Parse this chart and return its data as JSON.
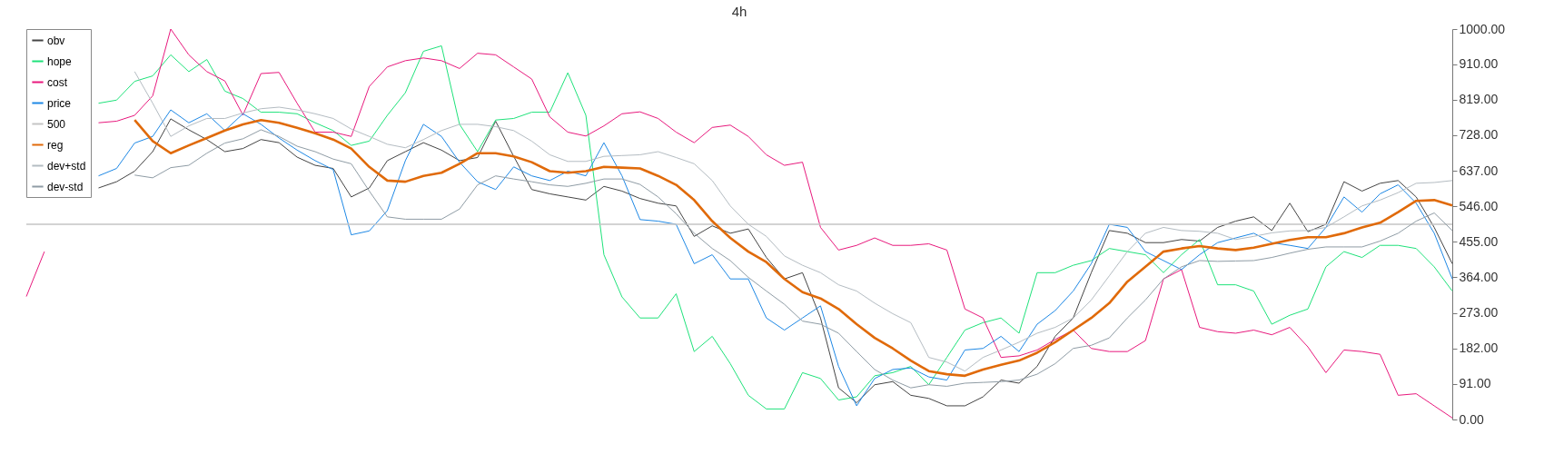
{
  "chart_data": {
    "type": "line",
    "title": "4h",
    "categories": [
      null,
      null,
      null,
      null,
      null,
      null,
      null,
      null,
      null,
      null,
      null,
      null,
      null,
      null,
      null,
      null,
      null,
      null,
      null,
      null,
      null,
      null,
      null,
      null,
      null,
      null,
      null,
      null,
      null,
      null,
      null,
      null,
      null,
      null,
      null,
      null,
      null,
      null,
      null,
      null,
      null,
      null,
      null,
      null,
      null,
      null,
      null,
      null,
      null,
      null,
      null,
      null,
      null,
      null,
      null,
      null,
      null,
      null,
      null,
      null,
      null,
      null,
      null,
      null,
      null,
      null,
      null,
      null,
      null,
      null,
      null,
      null,
      null,
      null,
      null,
      null,
      null,
      null,
      null,
      null
    ],
    "series": [
      {
        "name": "obv",
        "color": "#444444",
        "values": [
          null,
          null,
          null,
          null,
          593,
          609,
          636,
          686,
          770,
          742,
          717,
          686,
          694,
          717,
          709,
          672,
          651,
          643,
          570,
          593,
          663,
          686,
          709,
          690,
          663,
          671,
          764,
          674,
          589,
          578,
          570,
          562,
          597,
          585,
          566,
          554,
          547,
          469,
          496,
          477,
          488,
          415,
          360,
          376,
          260,
          81,
          43,
          89,
          97,
          62,
          54,
          35,
          35,
          58,
          101,
          93,
          136,
          213,
          260,
          376,
          484,
          477,
          453,
          453,
          461,
          457,
          492,
          508,
          519,
          484,
          554,
          481,
          500,
          609,
          585,
          605,
          612,
          570,
          492,
          399
        ]
      },
      {
        "name": "hope",
        "color": "#1ee27a",
        "values": [
          null,
          null,
          null,
          null,
          810,
          818,
          866,
          880,
          934,
          891,
          922,
          841,
          822,
          787,
          787,
          783,
          760,
          740,
          702,
          713,
          779,
          837,
          943,
          957,
          756,
          686,
          767,
          771,
          787,
          787,
          888,
          779,
          422,
          314,
          260,
          260,
          322,
          174,
          213,
          143,
          62,
          27,
          27,
          120,
          105,
          50,
          58,
          112,
          120,
          136,
          89,
          159,
          229,
          248,
          260,
          221,
          376,
          376,
          395,
          407,
          438,
          430,
          422,
          376,
          422,
          461,
          345,
          345,
          329,
          244,
          267,
          283,
          391,
          430,
          415,
          446,
          446,
          438,
          391,
          329
        ]
      },
      {
        "name": "cost",
        "color": "#e8197d",
        "values": [
          315,
          430,
          null,
          null,
          760,
          764,
          779,
          829,
          1000,
          934,
          891,
          867,
          780,
          886,
          889,
          810,
          736,
          736,
          725,
          853,
          903,
          919,
          926,
          919,
          899,
          938,
          934,
          903,
          872,
          775,
          736,
          726,
          752,
          783,
          788,
          771,
          736,
          709,
          748,
          754,
          725,
          678,
          651,
          659,
          492,
          434,
          446,
          465,
          446,
          446,
          450,
          434,
          283,
          260,
          159,
          163,
          178,
          205,
          229,
          182,
          174,
          174,
          202,
          360,
          384,
          236,
          225,
          221,
          229,
          217,
          236,
          186,
          120,
          178,
          174,
          167,
          62,
          66,
          35,
          4
        ]
      },
      {
        "name": "price",
        "color": "#1e88e5",
        "values": [
          null,
          null,
          null,
          null,
          624,
          643,
          708,
          725,
          793,
          760,
          783,
          740,
          783,
          756,
          721,
          690,
          663,
          640,
          473,
          483,
          535,
          663,
          756,
          725,
          659,
          609,
          589,
          647,
          624,
          612,
          636,
          624,
          709,
          624,
          512,
          508,
          500,
          399,
          422,
          360,
          360,
          260,
          229,
          260,
          291,
          136,
          35,
          105,
          128,
          132,
          109,
          101,
          178,
          182,
          213,
          174,
          244,
          279,
          329,
          399,
          500,
          492,
          430,
          407,
          384,
          422,
          453,
          465,
          477,
          453,
          446,
          438,
          492,
          570,
          531,
          578,
          601,
          554,
          477,
          360
        ]
      },
      {
        "name": "500",
        "color": "#c4c4c4",
        "values": [
          500,
          500,
          500,
          500,
          500,
          500,
          500,
          500,
          500,
          500,
          500,
          500,
          500,
          500,
          500,
          500,
          500,
          500,
          500,
          500,
          500,
          500,
          500,
          500,
          500,
          500,
          500,
          500,
          500,
          500,
          500,
          500,
          500,
          500,
          500,
          500,
          500,
          500,
          500,
          500,
          500,
          500,
          500,
          500,
          500,
          500,
          500,
          500,
          500,
          500,
          500,
          500,
          500,
          500,
          500,
          500,
          500,
          500,
          500,
          500,
          500,
          500,
          500,
          500,
          500,
          500,
          500,
          500,
          500,
          500,
          500,
          500,
          500,
          500,
          500,
          500,
          500,
          500,
          500,
          500
        ]
      },
      {
        "name": "reg",
        "color": "#e06a0a",
        "values": [
          null,
          null,
          null,
          null,
          null,
          null,
          767,
          713,
          682,
          702,
          721,
          740,
          756,
          767,
          760,
          747,
          733,
          717,
          694,
          647,
          612,
          609,
          624,
          632,
          655,
          682,
          682,
          674,
          659,
          636,
          632,
          636,
          647,
          645,
          643,
          624,
          601,
          562,
          508,
          465,
          430,
          403,
          360,
          326,
          310,
          283,
          244,
          209,
          182,
          151,
          124,
          116,
          112,
          128,
          140,
          151,
          171,
          198,
          229,
          260,
          298,
          353,
          391,
          430,
          438,
          444,
          438,
          434,
          440,
          450,
          460,
          467,
          467,
          477,
          492,
          504,
          531,
          560,
          562,
          548
        ]
      },
      {
        "name": "dev+std",
        "color": "#b4bcc2",
        "values": [
          null,
          null,
          null,
          null,
          null,
          null,
          891,
          810,
          725,
          752,
          771,
          771,
          785,
          796,
          800,
          793,
          783,
          771,
          744,
          725,
          705,
          696,
          717,
          740,
          756,
          756,
          750,
          740,
          713,
          678,
          661,
          661,
          674,
          676,
          678,
          686,
          671,
          655,
          612,
          547,
          500,
          469,
          419,
          395,
          376,
          345,
          329,
          298,
          271,
          248,
          159,
          147,
          124,
          159,
          178,
          198,
          221,
          236,
          260,
          306,
          368,
          430,
          477,
          492,
          484,
          482,
          477,
          461,
          469,
          478,
          483,
          484,
          492,
          519,
          547,
          562,
          581,
          605,
          607,
          612
        ]
      },
      {
        "name": "dev-std",
        "color": "#8f9ca5",
        "values": [
          null,
          null,
          null,
          null,
          null,
          null,
          626,
          619,
          645,
          651,
          682,
          708,
          719,
          742,
          725,
          700,
          686,
          667,
          655,
          585,
          519,
          513,
          513,
          513,
          539,
          601,
          624,
          616,
          609,
          601,
          597,
          605,
          616,
          616,
          602,
          570,
          527,
          477,
          438,
          407,
          364,
          329,
          295,
          252,
          244,
          221,
          174,
          128,
          101,
          81,
          89,
          85,
          93,
          95,
          97,
          101,
          116,
          143,
          182,
          190,
          209,
          260,
          306,
          360,
          391,
          407,
          405,
          406,
          407,
          415,
          426,
          436,
          442,
          442,
          442,
          457,
          477,
          508,
          529,
          484
        ]
      }
    ],
    "ylim": [
      0,
      1000
    ],
    "yticks": [
      {
        "value": 0,
        "label": "0.00"
      },
      {
        "value": 91,
        "label": "91.00"
      },
      {
        "value": 182,
        "label": "182.00"
      },
      {
        "value": 273,
        "label": "273.00"
      },
      {
        "value": 364,
        "label": "364.00"
      },
      {
        "value": 455,
        "label": "455.00"
      },
      {
        "value": 546,
        "label": "546.00"
      },
      {
        "value": 637,
        "label": "637.00"
      },
      {
        "value": 728,
        "label": "728.00"
      },
      {
        "value": 819,
        "label": "819.00"
      },
      {
        "value": 910,
        "label": "910.00"
      },
      {
        "value": 1000,
        "label": "1000.00"
      }
    ],
    "legend": "top left",
    "grid": false,
    "tick_labels": "y",
    "marker": "none",
    "line_style": "solid"
  }
}
